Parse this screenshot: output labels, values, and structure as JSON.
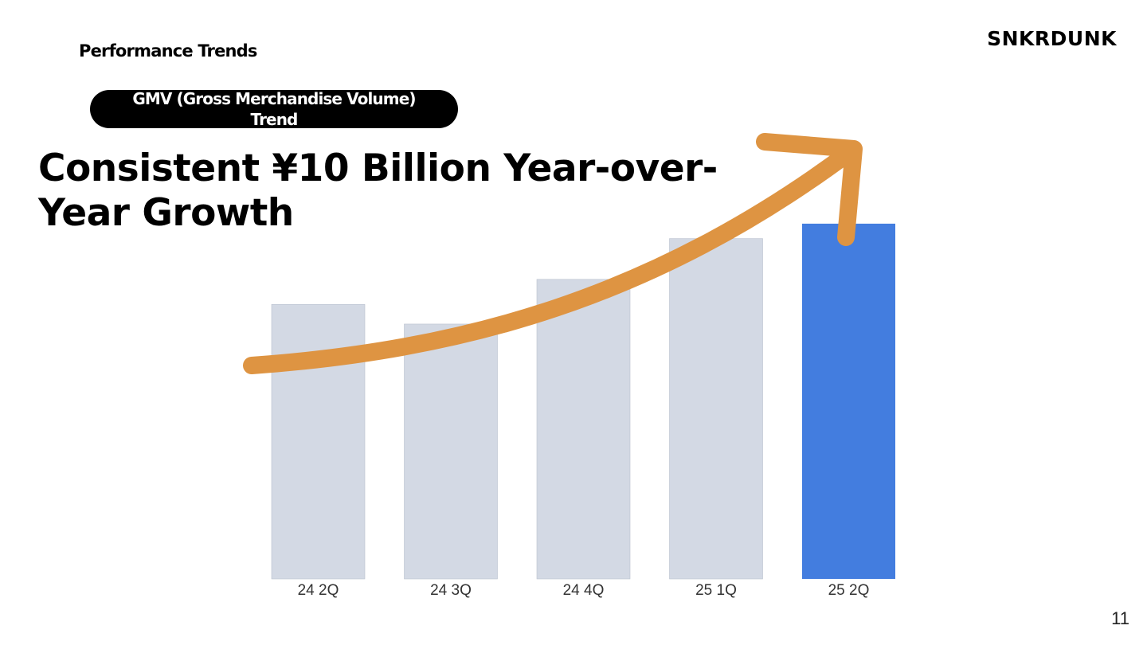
{
  "header": {
    "section_label": "Performance Trends",
    "brand": "SNKRDUNK",
    "pill_label": "GMV (Gross Merchandise Volume) Trend"
  },
  "headline": "Consistent ¥10 Billion Year-over-Year Growth",
  "page_number": "11",
  "colors": {
    "bar_default": "#d3d9e4",
    "bar_highlight": "#437ddf",
    "arrow": "#de9442",
    "text": "#000000"
  },
  "chart_data": {
    "type": "bar",
    "title": "",
    "xlabel": "",
    "ylabel": "",
    "categories": [
      "24 2Q",
      "24 3Q",
      "24 4Q",
      "25 1Q",
      "25 2Q"
    ],
    "values": [
      350,
      325,
      382,
      434,
      453
    ],
    "highlight_index": 4,
    "ylim": [
      0,
      460
    ],
    "grid": false,
    "legend": "none",
    "annotation": "upward-trend-arrow"
  }
}
